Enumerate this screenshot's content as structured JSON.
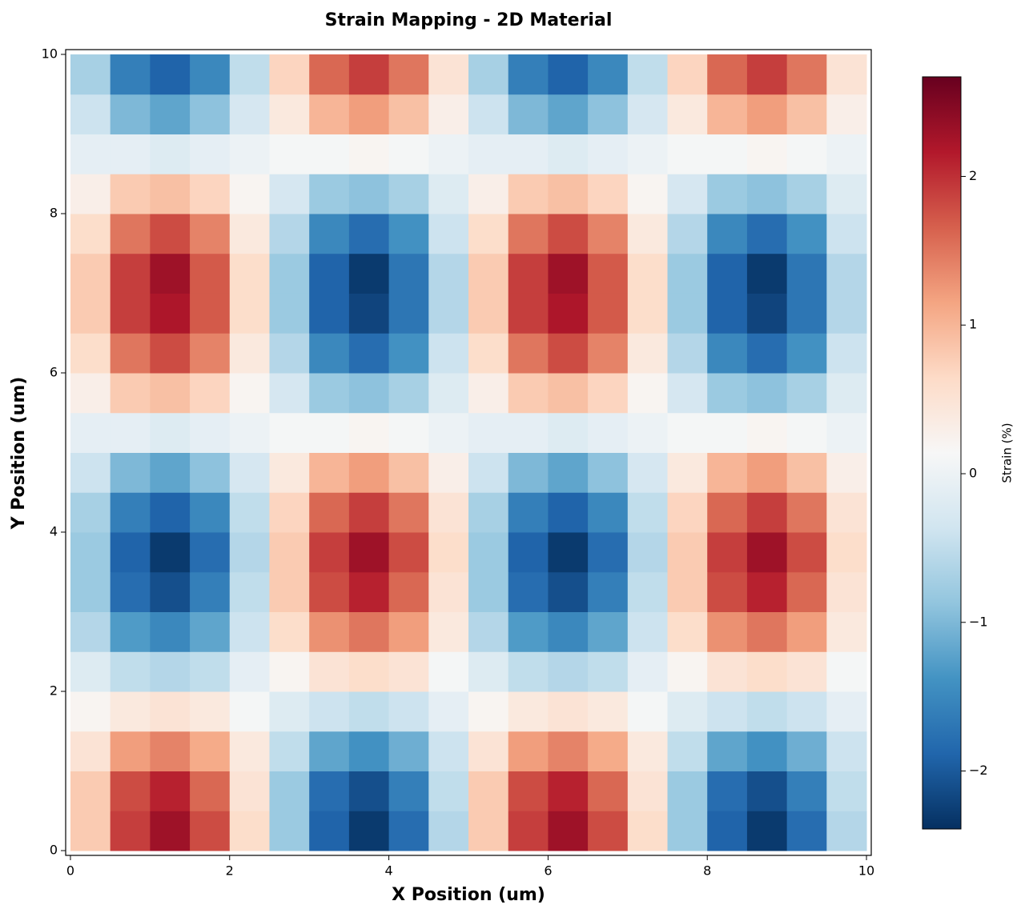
{
  "chart_data": {
    "type": "heatmap",
    "title": "Strain Mapping - 2D Material",
    "x_label": "X Position (um)",
    "y_label": "Y Position (um)",
    "colorbar_label": "Strain (%)",
    "x": [
      0.25,
      0.75,
      1.25,
      1.75,
      2.25,
      2.75,
      3.25,
      3.75,
      4.25,
      4.75,
      5.25,
      5.75,
      6.25,
      6.75,
      7.25,
      7.75,
      8.25,
      8.75,
      9.25,
      9.75
    ],
    "y": [
      0.25,
      0.75,
      1.25,
      1.75,
      2.25,
      2.75,
      3.25,
      3.75,
      4.25,
      4.75,
      5.25,
      5.75,
      6.25,
      6.75,
      7.25,
      7.75,
      8.25,
      8.75,
      9.25,
      9.75
    ],
    "values": [
      [
        0.8,
        1.9,
        2.3,
        1.8,
        0.6,
        -0.8,
        -1.9,
        -2.3,
        -1.8,
        -0.6,
        0.8,
        1.9,
        2.3,
        1.8,
        0.6,
        -0.8,
        -1.9,
        -2.3,
        -1.8,
        -0.6
      ],
      [
        0.8,
        1.8,
        2.1,
        1.6,
        0.5,
        -0.8,
        -1.8,
        -2.1,
        -1.6,
        -0.5,
        0.8,
        1.8,
        2.1,
        1.6,
        0.5,
        -0.8,
        -1.8,
        -2.1,
        -1.6,
        -0.5
      ],
      [
        0.5,
        1.2,
        1.4,
        1.1,
        0.4,
        -0.5,
        -1.2,
        -1.4,
        -1.1,
        -0.4,
        0.5,
        1.2,
        1.4,
        1.1,
        0.4,
        -0.5,
        -1.2,
        -1.4,
        -1.1,
        -0.4
      ],
      [
        0.2,
        0.4,
        0.5,
        0.4,
        0.1,
        -0.2,
        -0.4,
        -0.5,
        -0.4,
        -0.1,
        0.2,
        0.4,
        0.5,
        0.4,
        0.1,
        -0.2,
        -0.4,
        -0.5,
        -0.4,
        -0.1
      ],
      [
        -0.2,
        -0.5,
        -0.6,
        -0.5,
        -0.1,
        0.2,
        0.5,
        0.6,
        0.5,
        0.1,
        -0.2,
        -0.5,
        -0.6,
        -0.5,
        -0.1,
        0.2,
        0.5,
        0.6,
        0.5,
        0.1
      ],
      [
        -0.6,
        -1.3,
        -1.5,
        -1.2,
        -0.4,
        0.6,
        1.3,
        1.5,
        1.2,
        0.4,
        -0.6,
        -1.3,
        -1.5,
        -1.2,
        -0.4,
        0.6,
        1.3,
        1.5,
        1.2,
        0.4
      ],
      [
        -0.8,
        -1.8,
        -2.1,
        -1.6,
        -0.5,
        0.8,
        1.8,
        2.1,
        1.6,
        0.5,
        -0.8,
        -1.8,
        -2.1,
        -1.6,
        -0.5,
        0.8,
        1.8,
        2.1,
        1.6,
        0.5
      ],
      [
        -0.8,
        -1.9,
        -2.3,
        -1.8,
        -0.6,
        0.8,
        1.9,
        2.3,
        1.8,
        0.6,
        -0.8,
        -1.9,
        -2.3,
        -1.8,
        -0.6,
        0.8,
        1.9,
        2.3,
        1.8,
        0.6
      ],
      [
        -0.7,
        -1.6,
        -1.9,
        -1.5,
        -0.5,
        0.7,
        1.6,
        1.9,
        1.5,
        0.5,
        -0.7,
        -1.6,
        -1.9,
        -1.5,
        -0.5,
        0.7,
        1.6,
        1.9,
        1.5,
        0.5
      ],
      [
        -0.4,
        -1.0,
        -1.2,
        -0.9,
        -0.3,
        0.4,
        1.0,
        1.2,
        0.9,
        0.3,
        -0.4,
        -1.0,
        -1.2,
        -0.9,
        -0.3,
        0.4,
        1.0,
        1.2,
        0.9,
        0.3
      ],
      [
        -0.1,
        -0.1,
        -0.2,
        -0.1,
        0,
        0.1,
        0.1,
        0.2,
        0.1,
        0,
        -0.1,
        -0.1,
        -0.2,
        -0.1,
        0,
        0.1,
        0.1,
        0.2,
        0.1,
        0
      ],
      [
        0.3,
        0.8,
        0.9,
        0.7,
        0.2,
        -0.3,
        -0.8,
        -0.9,
        -0.7,
        -0.2,
        0.3,
        0.8,
        0.9,
        0.7,
        0.2,
        -0.3,
        -0.8,
        -0.9,
        -0.7,
        -0.2
      ],
      [
        0.6,
        1.5,
        1.8,
        1.4,
        0.4,
        -0.6,
        -1.5,
        -1.8,
        -1.4,
        -0.4,
        0.6,
        1.5,
        1.8,
        1.4,
        0.4,
        -0.6,
        -1.5,
        -1.8,
        -1.4,
        -0.4
      ],
      [
        0.8,
        1.9,
        2.2,
        1.7,
        0.6,
        -0.8,
        -1.9,
        -2.2,
        -1.7,
        -0.6,
        0.8,
        1.9,
        2.2,
        1.7,
        0.6,
        -0.8,
        -1.9,
        -2.2,
        -1.7,
        -0.6
      ],
      [
        0.8,
        1.9,
        2.3,
        1.7,
        0.6,
        -0.8,
        -1.9,
        -2.3,
        -1.7,
        -0.6,
        0.8,
        1.9,
        2.3,
        1.7,
        0.6,
        -0.8,
        -1.9,
        -2.3,
        -1.7,
        -0.6
      ],
      [
        0.6,
        1.5,
        1.8,
        1.4,
        0.4,
        -0.6,
        -1.5,
        -1.8,
        -1.4,
        -0.4,
        0.6,
        1.5,
        1.8,
        1.4,
        0.4,
        -0.6,
        -1.5,
        -1.8,
        -1.4,
        -0.4
      ],
      [
        0.3,
        0.8,
        0.9,
        0.7,
        0.2,
        -0.3,
        -0.8,
        -0.9,
        -0.7,
        -0.2,
        0.3,
        0.8,
        0.9,
        0.7,
        0.2,
        -0.3,
        -0.8,
        -0.9,
        -0.7,
        -0.2
      ],
      [
        -0.1,
        -0.1,
        -0.2,
        -0.1,
        0,
        0.1,
        0.1,
        0.2,
        0.1,
        0,
        -0.1,
        -0.1,
        -0.2,
        -0.1,
        0,
        0.1,
        0.1,
        0.2,
        0.1,
        0
      ],
      [
        -0.4,
        -1.0,
        -1.2,
        -0.9,
        -0.3,
        0.4,
        1.0,
        1.2,
        0.9,
        0.3,
        -0.4,
        -1.0,
        -1.2,
        -0.9,
        -0.3,
        0.4,
        1.0,
        1.2,
        0.9,
        0.3
      ],
      [
        -0.7,
        -1.6,
        -1.9,
        -1.5,
        -0.5,
        0.7,
        1.6,
        1.9,
        1.5,
        0.5,
        -0.7,
        -1.6,
        -1.9,
        -1.5,
        -0.5,
        0.7,
        1.6,
        1.9,
        1.5,
        0.5
      ]
    ],
    "cell_size": 0.5,
    "xlim": [
      -0.06,
      10.06
    ],
    "ylim": [
      -0.06,
      10.06
    ],
    "xticks": [
      0,
      2,
      4,
      6,
      8,
      10
    ],
    "yticks": [
      0,
      2,
      4,
      6,
      8,
      10
    ],
    "clim": [
      -2.39,
      2.67
    ],
    "cticks": [
      {
        "value": -2,
        "label": "−2"
      },
      {
        "value": -1,
        "label": "−1"
      },
      0,
      1,
      2
    ],
    "cmap": [
      "#053061",
      "#2166ac",
      "#4393c3",
      "#92c5de",
      "#d1e5f0",
      "#f7f7f7",
      "#fddbc7",
      "#f4a582",
      "#d6604d",
      "#b2182b",
      "#67001f"
    ]
  }
}
